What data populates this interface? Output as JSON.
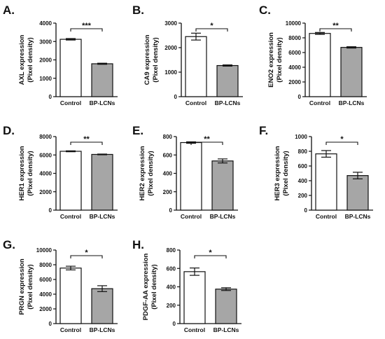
{
  "figure": {
    "background": "#ffffff",
    "colors": {
      "control": "#ffffff",
      "treated": "#a6a6a6",
      "stroke": "#111111"
    }
  },
  "chart_data": [
    {
      "type": "bar",
      "panel": "A.",
      "categories": [
        "Control",
        "BP-LCNs"
      ],
      "values": [
        3120,
        1790
      ],
      "errors": [
        40,
        30
      ],
      "ylabel_line1": "AXL expression",
      "ylabel_line2": "(Pixel density)",
      "ylim": [
        0,
        4000
      ],
      "yticks": [
        0,
        1000,
        2000,
        3000,
        4000
      ],
      "significance": "***"
    },
    {
      "type": "bar",
      "panel": "B.",
      "categories": [
        "Control",
        "BP-LCNs"
      ],
      "values": [
        2450,
        1270
      ],
      "errors": [
        140,
        25
      ],
      "ylabel_line1": "CA9 expression",
      "ylabel_line2": "(Pixel density)",
      "ylim": [
        0,
        3000
      ],
      "yticks": [
        0,
        1000,
        2000,
        3000
      ],
      "significance": "*"
    },
    {
      "type": "bar",
      "panel": "C.",
      "categories": [
        "Control",
        "BP-LCNs"
      ],
      "values": [
        8600,
        6700
      ],
      "errors": [
        130,
        90
      ],
      "ylabel_line1": "ENO2 expression",
      "ylabel_line2": "(Pixel density)",
      "ylim": [
        0,
        10000
      ],
      "yticks": [
        0,
        2000,
        4000,
        6000,
        8000,
        10000
      ],
      "significance": "**"
    },
    {
      "type": "bar",
      "panel": "D.",
      "categories": [
        "Control",
        "BP-LCNs"
      ],
      "values": [
        6400,
        6060
      ],
      "errors": [
        50,
        40
      ],
      "ylabel_line1": "HER1 expression",
      "ylabel_line2": "(Pixel density)",
      "ylim": [
        0,
        8000
      ],
      "yticks": [
        0,
        2000,
        4000,
        6000,
        8000
      ],
      "significance": "**"
    },
    {
      "type": "bar",
      "panel": "E.",
      "categories": [
        "Control",
        "BP-LCNs"
      ],
      "values": [
        735,
        535
      ],
      "errors": [
        8,
        22
      ],
      "ylabel_line1": "HER2 expression",
      "ylabel_line2": "(Pixel density)",
      "ylim": [
        0,
        800
      ],
      "yticks": [
        0,
        200,
        400,
        600,
        800
      ],
      "significance": "**"
    },
    {
      "type": "bar",
      "panel": "F.",
      "categories": [
        "Control",
        "BP-LCNs"
      ],
      "values": [
        765,
        470
      ],
      "errors": [
        45,
        45
      ],
      "ylabel_line1": "HER3 expression",
      "ylabel_line2": "(Pixel density)",
      "ylim": [
        0,
        1000
      ],
      "yticks": [
        0,
        200,
        400,
        600,
        800,
        1000
      ],
      "significance": "*"
    },
    {
      "type": "bar",
      "panel": "G.",
      "categories": [
        "Control",
        "BP-LCNs"
      ],
      "values": [
        7550,
        4750
      ],
      "errors": [
        250,
        400
      ],
      "ylabel_line1": "PRGN expression",
      "ylabel_line2": "(Pixel density)",
      "ylim": [
        0,
        10000
      ],
      "yticks": [
        0,
        2000,
        4000,
        6000,
        8000,
        10000
      ],
      "significance": "*"
    },
    {
      "type": "bar",
      "panel": "H.",
      "categories": [
        "Control",
        "BP-LCNs"
      ],
      "values": [
        565,
        375
      ],
      "errors": [
        40,
        15
      ],
      "ylabel_line1": "PDGF-AA expression",
      "ylabel_line2": "(Pixel density)",
      "ylim": [
        0,
        800
      ],
      "yticks": [
        0,
        200,
        400,
        600,
        800
      ],
      "significance": "*"
    }
  ]
}
